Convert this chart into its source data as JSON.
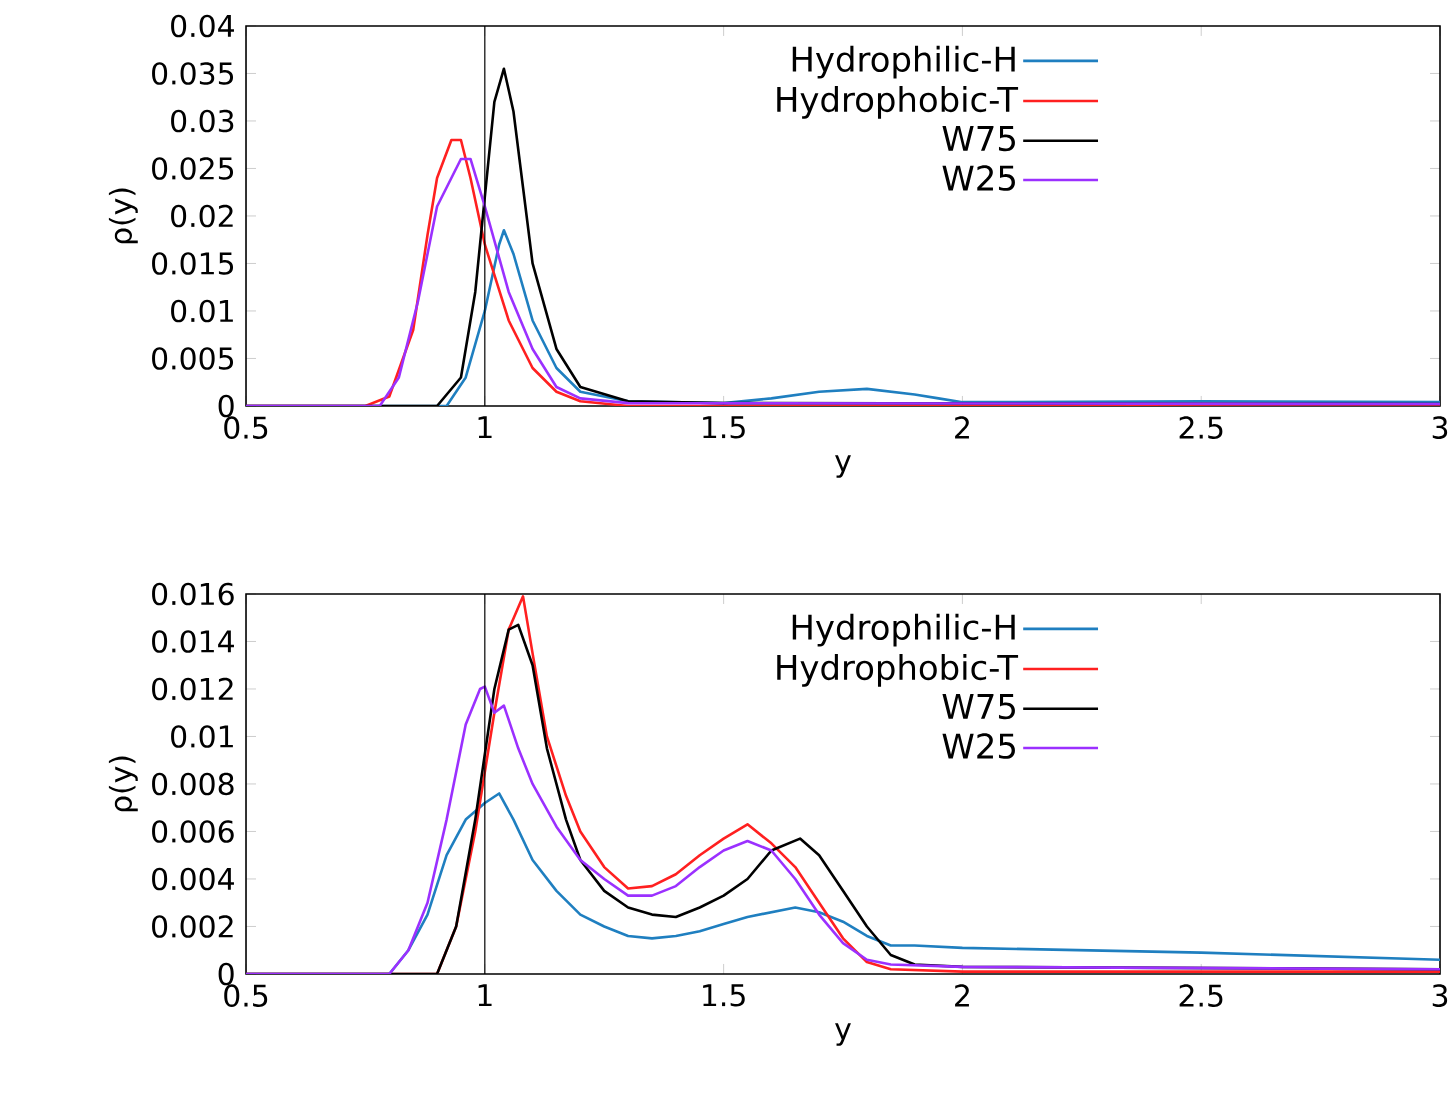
{
  "chart_data": [
    {
      "type": "line",
      "xlabel": "y",
      "ylabel": "ρ(y)",
      "xlim": [
        0.5,
        3
      ],
      "ylim": [
        0,
        0.04
      ],
      "xticks": [
        0.5,
        1,
        1.5,
        2,
        2.5,
        3
      ],
      "yticks": [
        0,
        0.005,
        0.01,
        0.015,
        0.02,
        0.025,
        0.03,
        0.035,
        0.04
      ],
      "legend": "top right",
      "ref_lines": [
        {
          "axis": "x",
          "value": 1,
          "color": "#000000"
        }
      ],
      "series": [
        {
          "name": "Hydrophilic-H",
          "color": "#1f7fc0",
          "x": [
            0.5,
            0.92,
            0.96,
            1.0,
            1.03,
            1.04,
            1.06,
            1.1,
            1.15,
            1.2,
            1.3,
            1.5,
            1.6,
            1.7,
            1.8,
            1.9,
            1.95,
            2.0,
            2.5,
            3.0
          ],
          "values": [
            0,
            0,
            0.003,
            0.01,
            0.017,
            0.0185,
            0.016,
            0.009,
            0.004,
            0.0015,
            0.0005,
            0.0003,
            0.0008,
            0.0015,
            0.0018,
            0.0012,
            0.0008,
            0.0004,
            0.0005,
            0.0004
          ]
        },
        {
          "name": "Hydrophobic-T",
          "color": "#ff2020",
          "x": [
            0.5,
            0.75,
            0.8,
            0.85,
            0.88,
            0.9,
            0.93,
            0.95,
            0.97,
            1.0,
            1.05,
            1.1,
            1.15,
            1.2,
            1.3,
            3.0
          ],
          "values": [
            0,
            0,
            0.001,
            0.008,
            0.018,
            0.024,
            0.028,
            0.028,
            0.024,
            0.017,
            0.009,
            0.004,
            0.0015,
            0.0005,
            0,
            0
          ]
        },
        {
          "name": "W75",
          "color": "#000000",
          "x": [
            0.5,
            0.9,
            0.95,
            0.98,
            1.0,
            1.02,
            1.04,
            1.06,
            1.08,
            1.1,
            1.15,
            1.2,
            1.3,
            1.5,
            3.0
          ],
          "values": [
            0,
            0,
            0.003,
            0.012,
            0.022,
            0.032,
            0.0355,
            0.031,
            0.023,
            0.015,
            0.006,
            0.002,
            0.0005,
            0.0003,
            0.0002
          ]
        },
        {
          "name": "W25",
          "color": "#9b30ff",
          "x": [
            0.5,
            0.78,
            0.82,
            0.86,
            0.9,
            0.95,
            0.97,
            1.0,
            1.05,
            1.1,
            1.15,
            1.2,
            1.3,
            3.0
          ],
          "values": [
            0,
            0,
            0.003,
            0.011,
            0.021,
            0.026,
            0.026,
            0.021,
            0.012,
            0.006,
            0.002,
            0.0008,
            0.0003,
            0.0002
          ]
        }
      ]
    },
    {
      "type": "line",
      "xlabel": "y",
      "ylabel": "ρ(y)",
      "xlim": [
        0.5,
        3
      ],
      "ylim": [
        0,
        0.016
      ],
      "xticks": [
        0.5,
        1,
        1.5,
        2,
        2.5,
        3
      ],
      "yticks": [
        0,
        0.002,
        0.004,
        0.006,
        0.008,
        0.01,
        0.012,
        0.014,
        0.016
      ],
      "legend": "top right",
      "ref_lines": [
        {
          "axis": "x",
          "value": 1,
          "color": "#000000"
        }
      ],
      "series": [
        {
          "name": "Hydrophilic-H",
          "color": "#1f7fc0",
          "x": [
            0.5,
            0.8,
            0.84,
            0.88,
            0.92,
            0.96,
            1.0,
            1.03,
            1.06,
            1.1,
            1.15,
            1.2,
            1.25,
            1.3,
            1.35,
            1.4,
            1.45,
            1.5,
            1.55,
            1.6,
            1.65,
            1.7,
            1.75,
            1.8,
            1.85,
            1.9,
            2.0,
            2.5,
            3.0
          ],
          "values": [
            0,
            0,
            0.001,
            0.0025,
            0.005,
            0.0065,
            0.0072,
            0.0076,
            0.0065,
            0.0048,
            0.0035,
            0.0025,
            0.002,
            0.0016,
            0.0015,
            0.0016,
            0.0018,
            0.0021,
            0.0024,
            0.0026,
            0.0028,
            0.0026,
            0.0022,
            0.0016,
            0.0012,
            0.0012,
            0.0011,
            0.0009,
            0.0006
          ]
        },
        {
          "name": "Hydrophobic-T",
          "color": "#ff2020",
          "x": [
            0.5,
            0.9,
            0.94,
            0.98,
            1.02,
            1.05,
            1.08,
            1.1,
            1.13,
            1.17,
            1.2,
            1.25,
            1.3,
            1.35,
            1.4,
            1.45,
            1.5,
            1.55,
            1.6,
            1.65,
            1.7,
            1.75,
            1.8,
            1.85,
            2.0,
            3.0
          ],
          "values": [
            0,
            0,
            0.002,
            0.006,
            0.011,
            0.0145,
            0.0159,
            0.0135,
            0.01,
            0.0075,
            0.006,
            0.0045,
            0.0036,
            0.0037,
            0.0042,
            0.005,
            0.0057,
            0.0063,
            0.0055,
            0.0045,
            0.003,
            0.0015,
            0.0005,
            0.0002,
            0.0001,
            0.0001
          ]
        },
        {
          "name": "W75",
          "color": "#000000",
          "x": [
            0.5,
            0.9,
            0.94,
            0.98,
            1.02,
            1.05,
            1.07,
            1.1,
            1.13,
            1.17,
            1.2,
            1.25,
            1.3,
            1.35,
            1.4,
            1.45,
            1.5,
            1.55,
            1.6,
            1.66,
            1.7,
            1.75,
            1.8,
            1.85,
            1.9,
            2.0,
            3.0
          ],
          "values": [
            0,
            0,
            0.002,
            0.0065,
            0.012,
            0.0145,
            0.0147,
            0.013,
            0.0095,
            0.0065,
            0.0048,
            0.0035,
            0.0028,
            0.0025,
            0.0024,
            0.0028,
            0.0033,
            0.004,
            0.0052,
            0.0057,
            0.005,
            0.0035,
            0.002,
            0.0008,
            0.0004,
            0.0003,
            0.0002
          ]
        },
        {
          "name": "W25",
          "color": "#9b30ff",
          "x": [
            0.5,
            0.8,
            0.84,
            0.88,
            0.92,
            0.96,
            0.99,
            1.0,
            1.02,
            1.04,
            1.07,
            1.1,
            1.15,
            1.2,
            1.25,
            1.3,
            1.35,
            1.4,
            1.45,
            1.5,
            1.55,
            1.6,
            1.65,
            1.7,
            1.75,
            1.8,
            1.85,
            2.0,
            3.0
          ],
          "values": [
            0,
            0,
            0.001,
            0.003,
            0.0065,
            0.0105,
            0.012,
            0.0121,
            0.011,
            0.0113,
            0.0095,
            0.008,
            0.0062,
            0.0048,
            0.004,
            0.0033,
            0.0033,
            0.0037,
            0.0045,
            0.0052,
            0.0056,
            0.0052,
            0.004,
            0.0025,
            0.0013,
            0.0006,
            0.0004,
            0.0003,
            0.0002
          ]
        }
      ]
    }
  ]
}
